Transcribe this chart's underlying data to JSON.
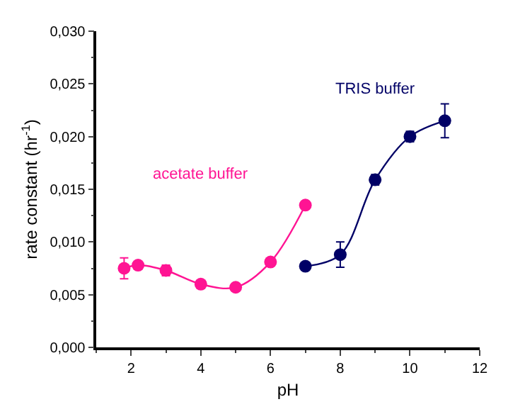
{
  "chart_data": {
    "type": "line",
    "xlabel": "pH",
    "ylabel": "rate constant (hr$^{-1}$)",
    "xlim": [
      1,
      12
    ],
    "xticks": [
      2,
      4,
      6,
      8,
      10,
      12
    ],
    "ylim": [
      0,
      0.03
    ],
    "yticks": [
      {
        "value": 0,
        "label": "0,000"
      },
      {
        "value": 0.005,
        "label": "0,005"
      },
      {
        "value": 0.01,
        "label": "0,010"
      },
      {
        "value": 0.015,
        "label": "0,015"
      },
      {
        "value": 0.02,
        "label": "0,020"
      },
      {
        "value": 0.025,
        "label": "0,025"
      },
      {
        "value": 0.03,
        "label": "0,030"
      }
    ],
    "legend": false,
    "marker": "circle",
    "line_style": "solid",
    "series": [
      {
        "name": "acetate buffer",
        "color": "#ff1493",
        "x": [
          1.8,
          2.2,
          3,
          4,
          5,
          6,
          7
        ],
        "values": [
          0.0075,
          0.0078,
          0.0073,
          0.006,
          0.0057,
          0.0081,
          0.0135
        ],
        "errors": [
          0.001,
          null,
          0.0005,
          null,
          null,
          null,
          null
        ]
      },
      {
        "name": "TRIS buffer",
        "color": "#000066",
        "x": [
          7,
          8,
          9,
          10,
          11
        ],
        "values": [
          0.0077,
          0.0088,
          0.0159,
          0.02,
          0.0215
        ],
        "errors": [
          null,
          0.0012,
          0.0005,
          0.0005,
          0.0016
        ]
      }
    ]
  }
}
